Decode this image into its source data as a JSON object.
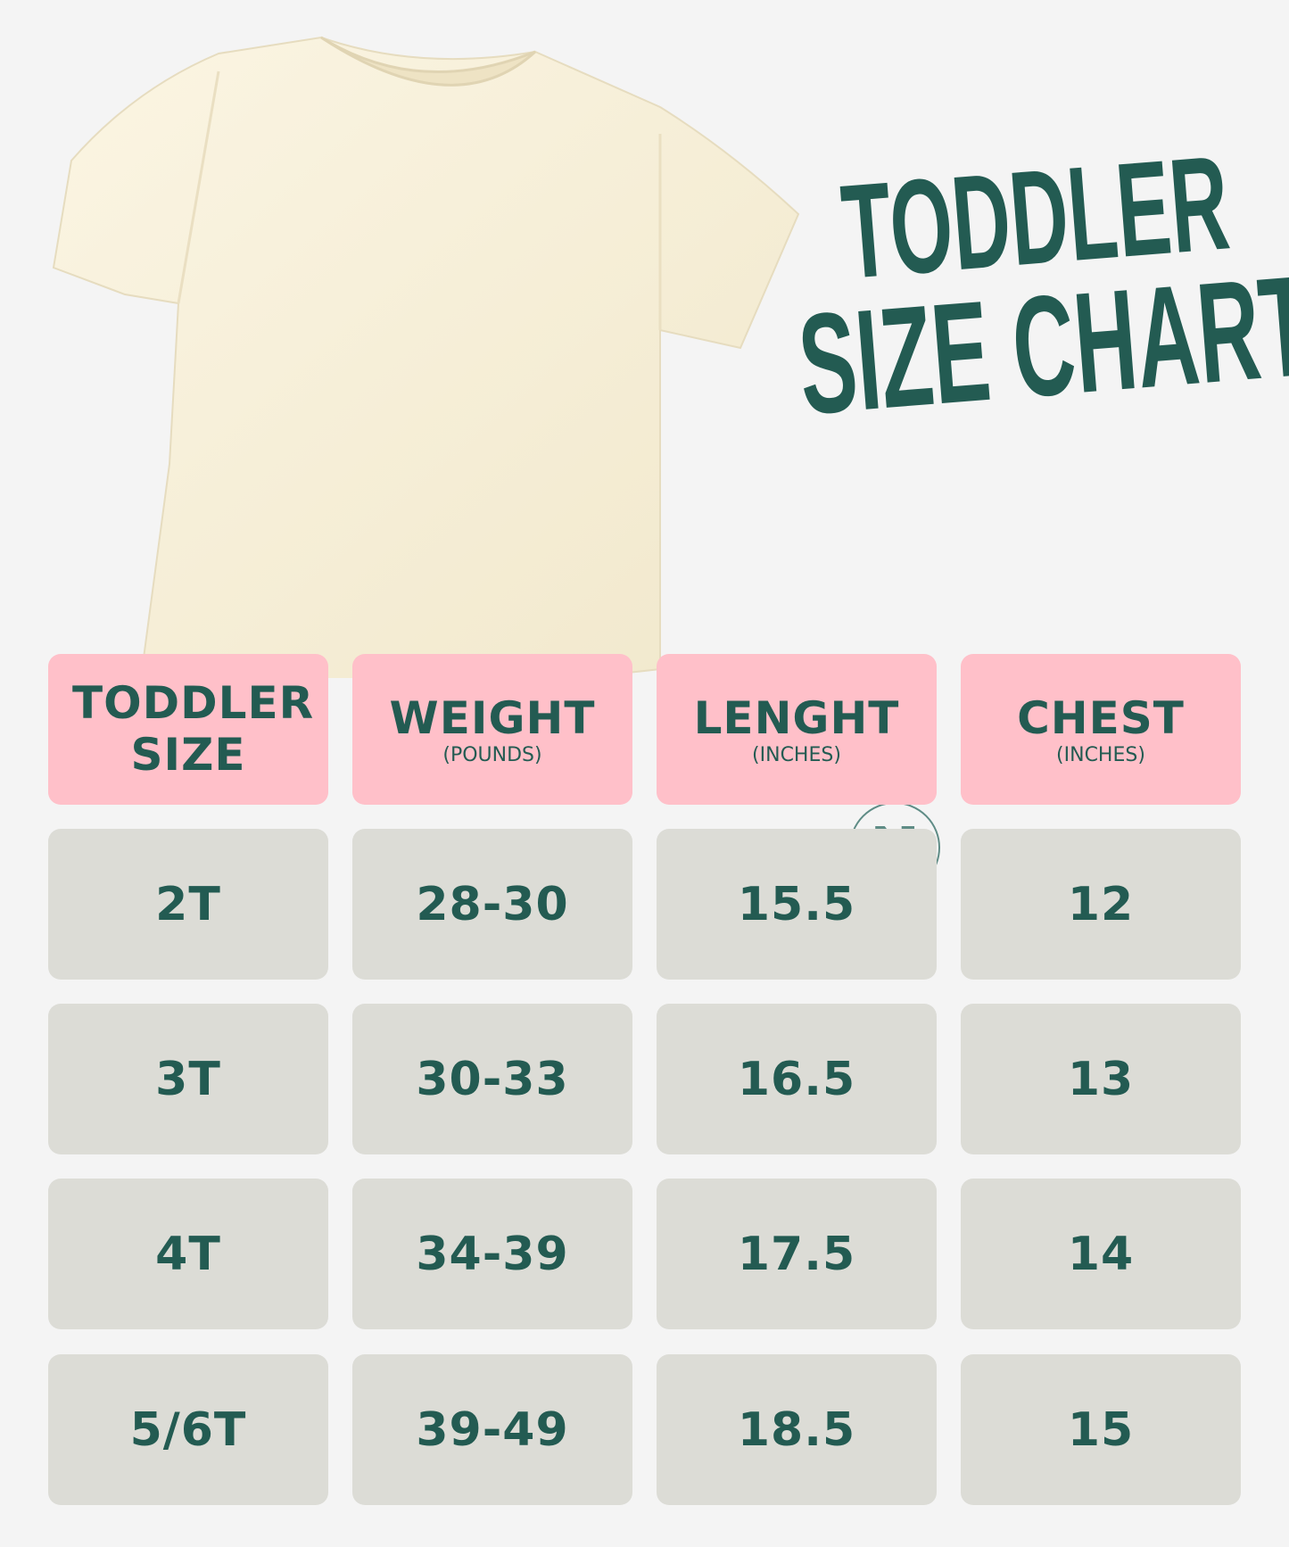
{
  "title": {
    "line1": "TODDLER",
    "line2": "SIZE CHART"
  },
  "colors": {
    "accent": "#235b52",
    "header_bg": "#ffc0c9",
    "cell_bg": "#dcdcd6",
    "background": "#f4f4f4",
    "shirt": "#f8f1dc"
  },
  "watermark": "N",
  "table": {
    "headers": [
      {
        "main": "TODDLER SIZE",
        "sub": ""
      },
      {
        "main": "WEIGHT",
        "sub": "(POUNDS)"
      },
      {
        "main": "LENGHT",
        "sub": "(INCHES)"
      },
      {
        "main": "CHEST",
        "sub": "(INCHES)"
      }
    ],
    "rows": [
      [
        "2T",
        "28-30",
        "15.5",
        "12"
      ],
      [
        "3T",
        "30-33",
        "16.5",
        "13"
      ],
      [
        "4T",
        "34-39",
        "17.5",
        "14"
      ],
      [
        "5/6T",
        "39-49",
        "18.5",
        "15"
      ]
    ]
  }
}
